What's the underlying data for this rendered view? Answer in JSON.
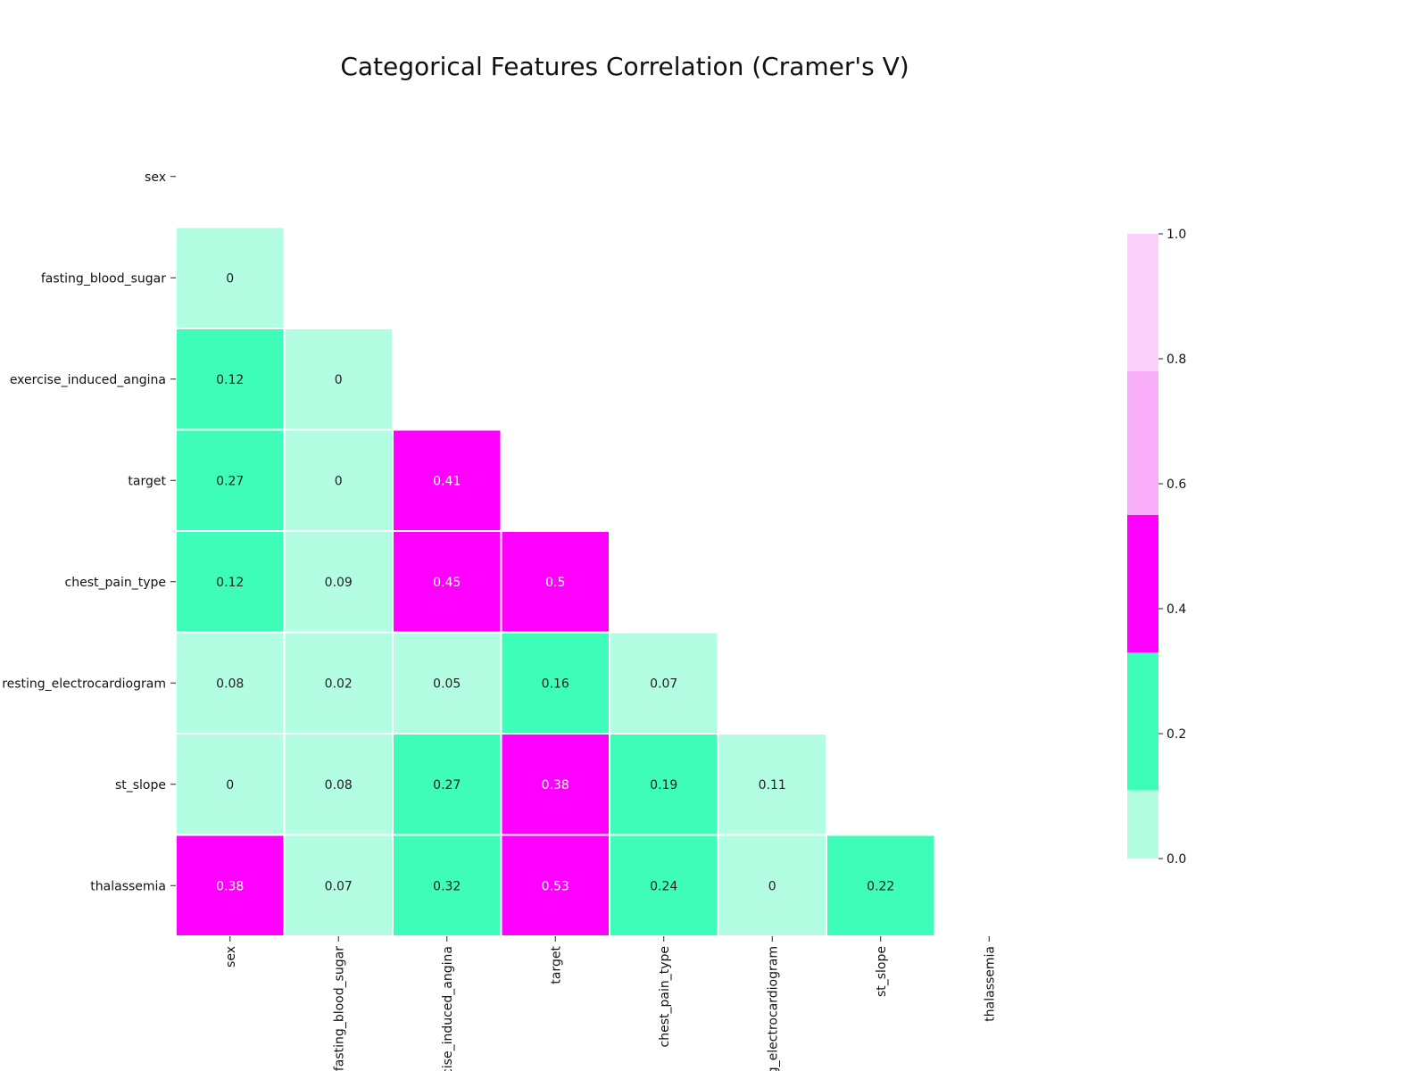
{
  "chart_data": {
    "type": "heatmap",
    "title": "Categorical Features Correlation (Cramer's V)",
    "row_labels": [
      "sex",
      "fasting_blood_sugar",
      "exercise_induced_angina",
      "target",
      "chest_pain_type",
      "resting_electrocardiogram",
      "st_slope",
      "thalassemia"
    ],
    "col_labels": [
      "sex",
      "fasting_blood_sugar",
      "exercise_induced_angina",
      "target",
      "chest_pain_type",
      "resting_electrocardiogram",
      "st_slope",
      "thalassemia"
    ],
    "mask": "upper triangle including diagonal",
    "values": [
      [
        null,
        null,
        null,
        null,
        null,
        null,
        null,
        null
      ],
      [
        0,
        null,
        null,
        null,
        null,
        null,
        null,
        null
      ],
      [
        0.12,
        0,
        null,
        null,
        null,
        null,
        null,
        null
      ],
      [
        0.27,
        0,
        0.41,
        null,
        null,
        null,
        null,
        null
      ],
      [
        0.12,
        0.09,
        0.45,
        0.5,
        null,
        null,
        null,
        null
      ],
      [
        0.08,
        0.02,
        0.05,
        0.16,
        0.07,
        null,
        null,
        null
      ],
      [
        0,
        0.08,
        0.27,
        0.38,
        0.19,
        0.11,
        null,
        null
      ],
      [
        0.38,
        0.07,
        0.32,
        0.53,
        0.24,
        0,
        0.22,
        null
      ]
    ],
    "colorbar": {
      "range": [
        0,
        1
      ],
      "ticks": [
        "0.0",
        "0.2",
        "0.4",
        "0.6",
        "0.8",
        "1.0"
      ],
      "bins": [
        {
          "from": 0.0,
          "to": 0.11,
          "color": "#b3fde2"
        },
        {
          "from": 0.11,
          "to": 0.33,
          "color": "#3efdb9"
        },
        {
          "from": 0.33,
          "to": 0.55,
          "color": "#ff00ff"
        },
        {
          "from": 0.55,
          "to": 0.78,
          "color": "#f9aef9"
        },
        {
          "from": 0.78,
          "to": 1.0,
          "color": "#fbd0fb"
        }
      ]
    },
    "dark_cell_text_color": "#ffffff",
    "light_cell_text_color": "#222222"
  }
}
